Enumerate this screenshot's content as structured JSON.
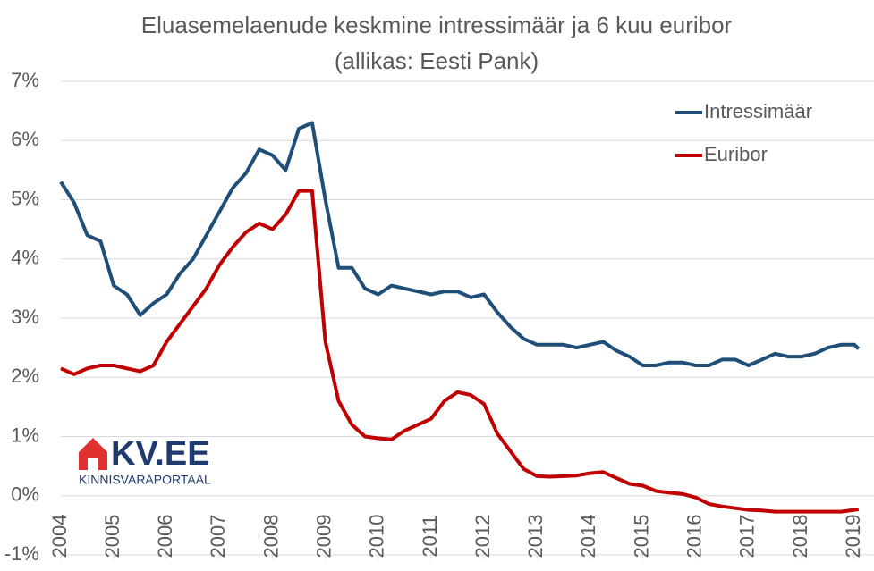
{
  "chart_data": {
    "type": "line",
    "title": "Eluasemelaenude keskmine intressimäär ja 6 kuu euribor",
    "subtitle": "(allikas: Eesti Pank)",
    "x": [
      2004.0,
      2004.25,
      2004.5,
      2004.75,
      2005.0,
      2005.25,
      2005.5,
      2005.75,
      2006.0,
      2006.25,
      2006.5,
      2006.75,
      2007.0,
      2007.25,
      2007.5,
      2007.75,
      2008.0,
      2008.25,
      2008.5,
      2008.75,
      2009.0,
      2009.25,
      2009.5,
      2009.75,
      2010.0,
      2010.25,
      2010.5,
      2010.75,
      2011.0,
      2011.25,
      2011.5,
      2011.75,
      2012.0,
      2012.25,
      2012.5,
      2012.75,
      2013.0,
      2013.25,
      2013.5,
      2013.75,
      2014.0,
      2014.25,
      2014.5,
      2014.75,
      2015.0,
      2015.25,
      2015.5,
      2015.75,
      2016.0,
      2016.25,
      2016.5,
      2016.75,
      2017.0,
      2017.25,
      2017.5,
      2017.75,
      2018.0,
      2018.25,
      2018.5,
      2018.75,
      2019.0,
      2019.08
    ],
    "series": [
      {
        "name": "Intressimäär",
        "color": "#1f4e79",
        "values": [
          5.3,
          4.95,
          4.4,
          4.3,
          3.55,
          3.4,
          3.05,
          3.25,
          3.4,
          3.75,
          4.0,
          4.4,
          4.8,
          5.2,
          5.45,
          5.85,
          5.75,
          5.5,
          6.2,
          6.3,
          5.0,
          3.85,
          3.85,
          3.5,
          3.4,
          3.55,
          3.5,
          3.45,
          3.4,
          3.45,
          3.45,
          3.35,
          3.4,
          3.1,
          2.85,
          2.65,
          2.55,
          2.55,
          2.55,
          2.5,
          2.55,
          2.6,
          2.45,
          2.35,
          2.2,
          2.2,
          2.25,
          2.25,
          2.2,
          2.2,
          2.3,
          2.3,
          2.2,
          2.3,
          2.4,
          2.35,
          2.35,
          2.4,
          2.5,
          2.55,
          2.55,
          2.48
        ]
      },
      {
        "name": "Euribor",
        "color": "#c00000",
        "values": [
          2.15,
          2.05,
          2.15,
          2.2,
          2.2,
          2.15,
          2.1,
          2.2,
          2.6,
          2.9,
          3.2,
          3.5,
          3.9,
          4.2,
          4.45,
          4.6,
          4.5,
          4.75,
          5.15,
          5.15,
          2.6,
          1.6,
          1.2,
          1.0,
          0.97,
          0.95,
          1.1,
          1.2,
          1.3,
          1.6,
          1.75,
          1.7,
          1.55,
          1.05,
          0.75,
          0.45,
          0.33,
          0.32,
          0.33,
          0.34,
          0.38,
          0.4,
          0.3,
          0.2,
          0.17,
          0.08,
          0.05,
          0.03,
          -0.03,
          -0.14,
          -0.18,
          -0.21,
          -0.24,
          -0.25,
          -0.27,
          -0.27,
          -0.27,
          -0.27,
          -0.27,
          -0.27,
          -0.24,
          -0.23
        ]
      }
    ],
    "xlim": [
      2004,
      2019.1
    ],
    "xticks": [
      2004,
      2005,
      2006,
      2007,
      2008,
      2009,
      2010,
      2011,
      2012,
      2013,
      2014,
      2015,
      2016,
      2017,
      2018,
      2019
    ],
    "ylim": [
      -1,
      7
    ],
    "yticks": [
      {
        "value": -1,
        "label": "-1%"
      },
      {
        "value": 0,
        "label": "0%"
      },
      {
        "value": 1,
        "label": "1%"
      },
      {
        "value": 2,
        "label": "2%"
      },
      {
        "value": 3,
        "label": "3%"
      },
      {
        "value": 4,
        "label": "4%"
      },
      {
        "value": 5,
        "label": "5%"
      },
      {
        "value": 6,
        "label": "6%"
      },
      {
        "value": 7,
        "label": "7%"
      }
    ],
    "grid": true,
    "legend": "upper right"
  },
  "logo": {
    "name": "KV.EE",
    "tagline": "KINNISVARAPORTAAL"
  }
}
